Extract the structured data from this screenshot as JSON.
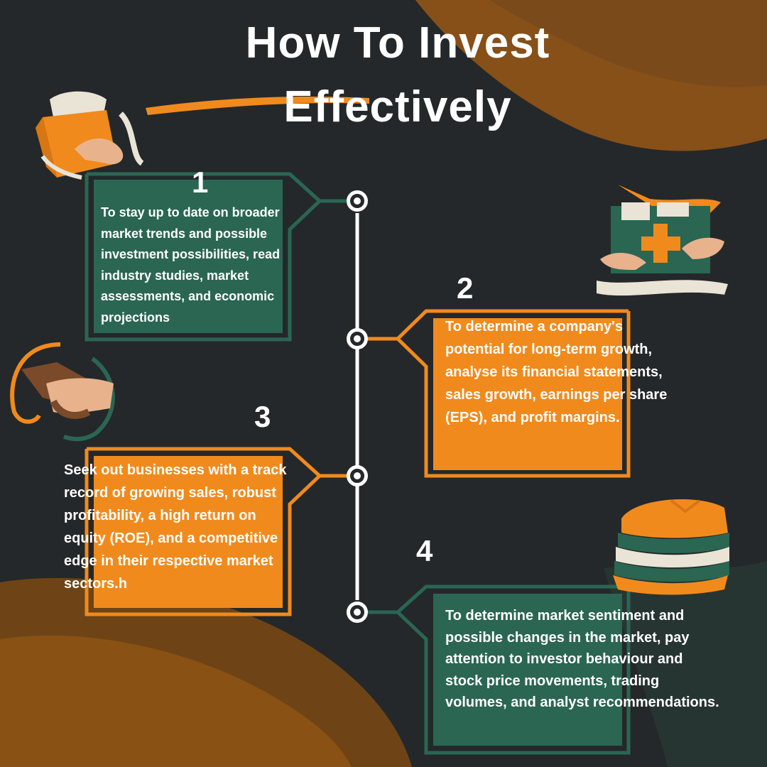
{
  "title": {
    "line1": "How To Invest",
    "line2": "Effectively"
  },
  "colors": {
    "background": "#24282a",
    "green": "#2a6652",
    "orange": "#f18a1c",
    "white": "#ffffff"
  },
  "steps": [
    {
      "number": "1",
      "text": "To stay up to date on broader market trends and possible investment possibilities, read industry studies, market assessments, and economic projections",
      "color": "green"
    },
    {
      "number": "2",
      "text": "To determine a company's potential for long-term growth, analyse its financial statements, sales growth, earnings per share (EPS), and profit margins.",
      "color": "orange"
    },
    {
      "number": "3",
      "text": "Seek out businesses with a track record of growing sales, robust profitability, a high return on equity (ROE), and a competitive edge in their respective market sectors.h",
      "color": "orange"
    },
    {
      "number": "4",
      "text": "To determine market sentiment and possible changes in the market, pay attention to investor behaviour and stock price movements, trading volumes, and analyst recommendations.",
      "color": "green"
    }
  ],
  "illustrations": [
    "package-icon",
    "first-aid-kit-icon",
    "handshake-icon",
    "folded-clothes-icon"
  ]
}
